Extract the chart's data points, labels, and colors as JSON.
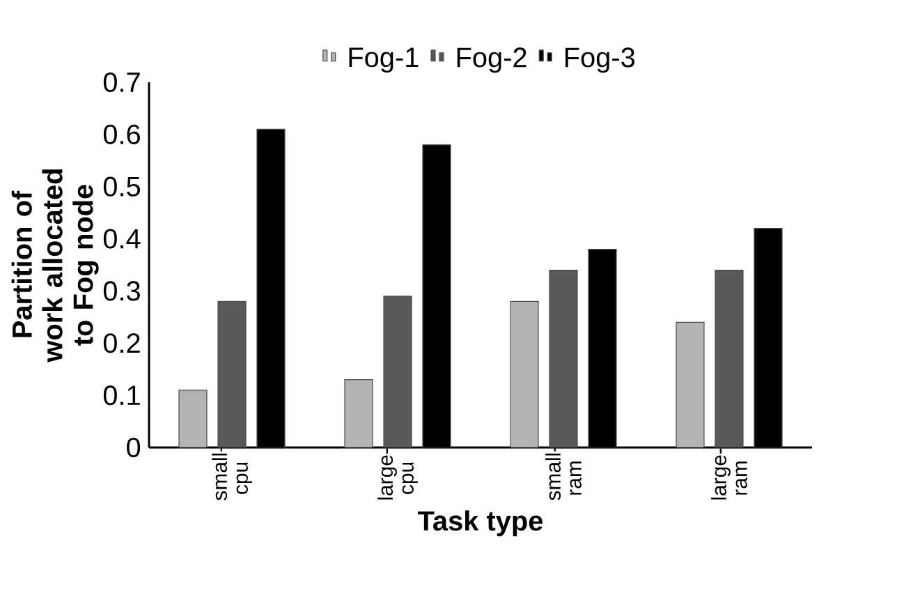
{
  "chart_data": {
    "type": "bar",
    "xlabel": "Task type",
    "ylabel": "Partition of work allocated to Fog node",
    "categories": [
      "small-cpu",
      "large-cpu",
      "small-ram",
      "large-ram"
    ],
    "series": [
      {
        "name": "Fog-1",
        "color": "#b3b3b3",
        "values": [
          0.11,
          0.13,
          0.28,
          0.24
        ]
      },
      {
        "name": "Fog-2",
        "color": "#595959",
        "values": [
          0.28,
          0.29,
          0.34,
          0.34
        ]
      },
      {
        "name": "Fog-3",
        "color": "#000000",
        "values": [
          0.61,
          0.58,
          0.38,
          0.42
        ]
      }
    ],
    "ylim": [
      0,
      0.7
    ],
    "yticks": [
      0,
      0.1,
      0.2,
      0.3,
      0.4,
      0.5,
      0.6,
      0.7
    ],
    "legend": "top",
    "grid": false
  }
}
